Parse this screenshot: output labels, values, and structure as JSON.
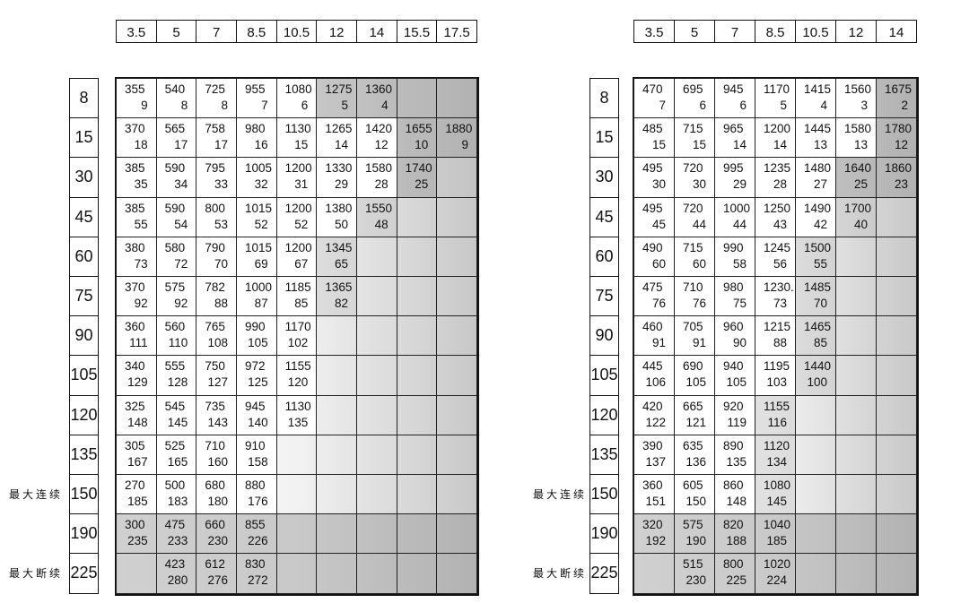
{
  "left_table": {
    "columns": [
      "3.5",
      "5",
      "7",
      "8.5",
      "10.5",
      "12",
      "14",
      "15.5",
      "17.5"
    ],
    "rows": [
      {
        "label": "8",
        "cells": [
          [
            "355",
            "9"
          ],
          [
            "540",
            "8"
          ],
          [
            "725",
            "8"
          ],
          [
            "955",
            "7"
          ],
          [
            "1080",
            "6"
          ],
          [
            "1275",
            "5"
          ],
          [
            "1360",
            "4"
          ],
          null,
          null
        ]
      },
      {
        "label": "15",
        "cells": [
          [
            "370",
            "18"
          ],
          [
            "565",
            "17"
          ],
          [
            "758",
            "17"
          ],
          [
            "980",
            "16"
          ],
          [
            "1130",
            "15"
          ],
          [
            "1265",
            "14"
          ],
          [
            "1420",
            "12"
          ],
          [
            "1655",
            "10"
          ],
          [
            "1880",
            "9"
          ]
        ]
      },
      {
        "label": "30",
        "cells": [
          [
            "385",
            "35"
          ],
          [
            "590",
            "34"
          ],
          [
            "795",
            "33"
          ],
          [
            "1005",
            "32"
          ],
          [
            "1200",
            "31"
          ],
          [
            "1330",
            "29"
          ],
          [
            "1580",
            "28"
          ],
          [
            "1740",
            "25"
          ],
          null
        ]
      },
      {
        "label": "45",
        "cells": [
          [
            "385",
            "55"
          ],
          [
            "590",
            "54"
          ],
          [
            "800",
            "53"
          ],
          [
            "1015",
            "52"
          ],
          [
            "1200",
            "52"
          ],
          [
            "1380",
            "50"
          ],
          [
            "1550",
            "48"
          ],
          null,
          null
        ]
      },
      {
        "label": "60",
        "cells": [
          [
            "380",
            "73"
          ],
          [
            "580",
            "72"
          ],
          [
            "790",
            "70"
          ],
          [
            "1015",
            "69"
          ],
          [
            "1200",
            "67"
          ],
          [
            "1345",
            "65"
          ],
          null,
          null,
          null
        ]
      },
      {
        "label": "75",
        "cells": [
          [
            "370",
            "92"
          ],
          [
            "575",
            "92"
          ],
          [
            "782",
            "88"
          ],
          [
            "1000",
            "87"
          ],
          [
            "1185",
            "85"
          ],
          [
            "1365",
            "82"
          ],
          null,
          null,
          null
        ]
      },
      {
        "label": "90",
        "cells": [
          [
            "360",
            "111"
          ],
          [
            "560",
            "110"
          ],
          [
            "765",
            "108"
          ],
          [
            "990",
            "105"
          ],
          [
            "1170",
            "102"
          ],
          null,
          null,
          null,
          null
        ]
      },
      {
        "label": "105",
        "cells": [
          [
            "340",
            "129"
          ],
          [
            "555",
            "128"
          ],
          [
            "750",
            "127"
          ],
          [
            "972",
            "125"
          ],
          [
            "1155",
            "120"
          ],
          null,
          null,
          null,
          null
        ]
      },
      {
        "label": "120",
        "cells": [
          [
            "325",
            "148"
          ],
          [
            "545",
            "145"
          ],
          [
            "735",
            "143"
          ],
          [
            "945",
            "140"
          ],
          [
            "1130",
            "135"
          ],
          null,
          null,
          null,
          null
        ]
      },
      {
        "label": "135",
        "cells": [
          [
            "305",
            "167"
          ],
          [
            "525",
            "165"
          ],
          [
            "710",
            "160"
          ],
          [
            "910",
            "158"
          ],
          null,
          null,
          null,
          null,
          null
        ]
      },
      {
        "label": "150",
        "cells": [
          [
            "270",
            "185"
          ],
          [
            "500",
            "183"
          ],
          [
            "680",
            "180"
          ],
          [
            "880",
            "176"
          ],
          null,
          null,
          null,
          null,
          null
        ]
      },
      {
        "label": "190",
        "cells": [
          [
            "300",
            "235"
          ],
          [
            "475",
            "233"
          ],
          [
            "660",
            "230"
          ],
          [
            "855",
            "226"
          ],
          null,
          null,
          null,
          null,
          null
        ]
      },
      {
        "label": "225",
        "cells": [
          null,
          [
            "423",
            "280"
          ],
          [
            "612",
            "276"
          ],
          [
            "830",
            "272"
          ],
          null,
          null,
          null,
          null,
          null
        ]
      }
    ],
    "note_continuous": "最大连续",
    "note_intermittent": "最大断续"
  },
  "right_table": {
    "columns": [
      "3.5",
      "5",
      "7",
      "8.5",
      "10.5",
      "12",
      "14"
    ],
    "rows": [
      {
        "label": "8",
        "cells": [
          [
            "470",
            "7"
          ],
          [
            "695",
            "6"
          ],
          [
            "945",
            "6"
          ],
          [
            "1170",
            "5"
          ],
          [
            "1415",
            "4"
          ],
          [
            "1560",
            "3"
          ],
          [
            "1675",
            "2"
          ]
        ]
      },
      {
        "label": "15",
        "cells": [
          [
            "485",
            "15"
          ],
          [
            "715",
            "15"
          ],
          [
            "965",
            "14"
          ],
          [
            "1200",
            "14"
          ],
          [
            "1445",
            "13"
          ],
          [
            "1580",
            "13"
          ],
          [
            "1780",
            "12"
          ]
        ]
      },
      {
        "label": "30",
        "cells": [
          [
            "495",
            "30"
          ],
          [
            "720",
            "30"
          ],
          [
            "995",
            "29"
          ],
          [
            "1235",
            "28"
          ],
          [
            "1480",
            "27"
          ],
          [
            "1640",
            "25"
          ],
          [
            "1860",
            "23"
          ]
        ]
      },
      {
        "label": "45",
        "cells": [
          [
            "495",
            "45"
          ],
          [
            "720",
            "44"
          ],
          [
            "1000",
            "44"
          ],
          [
            "1250",
            "43"
          ],
          [
            "1490",
            "42"
          ],
          [
            "1700",
            "40"
          ],
          null
        ]
      },
      {
        "label": "60",
        "cells": [
          [
            "490",
            "60"
          ],
          [
            "715",
            "60"
          ],
          [
            "990",
            "58"
          ],
          [
            "1245",
            "56"
          ],
          [
            "1500",
            "55"
          ],
          null,
          null
        ]
      },
      {
        "label": "75",
        "cells": [
          [
            "475",
            "76"
          ],
          [
            "710",
            "76"
          ],
          [
            "980",
            "75"
          ],
          [
            "1230.",
            "73"
          ],
          [
            "1485",
            "70"
          ],
          null,
          null
        ]
      },
      {
        "label": "90",
        "cells": [
          [
            "460",
            "91"
          ],
          [
            "705",
            "91"
          ],
          [
            "960",
            "90"
          ],
          [
            "1215",
            "88"
          ],
          [
            "1465",
            "85"
          ],
          null,
          null
        ]
      },
      {
        "label": "105",
        "cells": [
          [
            "445",
            "106"
          ],
          [
            "690",
            "105"
          ],
          [
            "940",
            "105"
          ],
          [
            "1195",
            "103"
          ],
          [
            "1440",
            "100"
          ],
          null,
          null
        ]
      },
      {
        "label": "120",
        "cells": [
          [
            "420",
            "122"
          ],
          [
            "665",
            "121"
          ],
          [
            "920",
            "119"
          ],
          [
            "1155",
            "116"
          ],
          null,
          null,
          null
        ]
      },
      {
        "label": "135",
        "cells": [
          [
            "390",
            "137"
          ],
          [
            "635",
            "136"
          ],
          [
            "890",
            "135"
          ],
          [
            "1120",
            "134"
          ],
          null,
          null,
          null
        ]
      },
      {
        "label": "150",
        "cells": [
          [
            "360",
            "151"
          ],
          [
            "605",
            "150"
          ],
          [
            "860",
            "148"
          ],
          [
            "1080",
            "145"
          ],
          null,
          null,
          null
        ]
      },
      {
        "label": "190",
        "cells": [
          [
            "320",
            "192"
          ],
          [
            "575",
            "190"
          ],
          [
            "820",
            "188"
          ],
          [
            "1040",
            "185"
          ],
          null,
          null,
          null
        ]
      },
      {
        "label": "225",
        "cells": [
          null,
          [
            "515",
            "230"
          ],
          [
            "800",
            "225"
          ],
          [
            "1020",
            "224"
          ],
          null,
          null,
          null
        ]
      }
    ],
    "note_continuous": "最大连续",
    "note_intermittent": "最大断续"
  }
}
